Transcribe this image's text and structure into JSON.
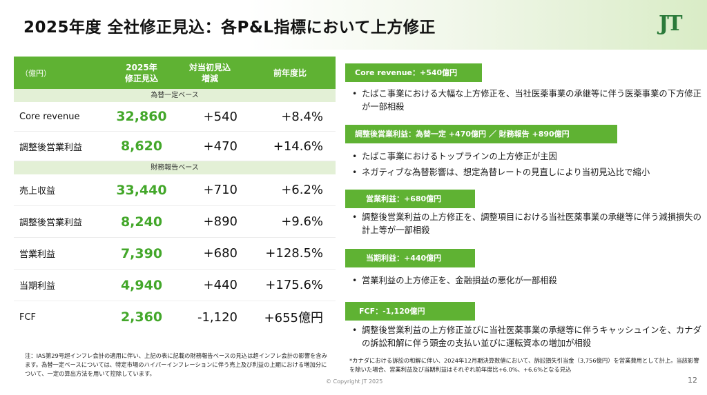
{
  "header": {
    "title": "2025年度 全社修正見込：各P&L指標において上方修正",
    "logo": "JT"
  },
  "table": {
    "headers": {
      "unit": "（億円）",
      "col1_line1": "2025年",
      "col1_line2": "修正見込",
      "col2_line1": "対当初見込",
      "col2_line2": "増減",
      "col3": "前年度比"
    },
    "section_a": "為替一定ベース",
    "rows_a": [
      {
        "label": "Core revenue",
        "value": "32,860",
        "diff": "+540",
        "yoy": "+8.4%"
      },
      {
        "label": "調整後営業利益",
        "value": "8,620",
        "diff": "+470",
        "yoy": "+14.6%"
      }
    ],
    "section_b": "財務報告ベース",
    "rows_b": [
      {
        "label": "売上収益",
        "value": "33,440",
        "diff": "+710",
        "yoy": "+6.2%"
      },
      {
        "label": "調整後営業利益",
        "value": "8,240",
        "diff": "+890",
        "yoy": "+9.6%"
      },
      {
        "label": "営業利益",
        "value": "7,390",
        "diff": "+680",
        "yoy": "+128.5%"
      },
      {
        "label": "当期利益",
        "value": "4,940",
        "diff": "+440",
        "yoy": "+175.6%"
      },
      {
        "label": "FCF",
        "value": "2,360",
        "diff": "-1,120",
        "yoy": "+655億円"
      }
    ]
  },
  "note_left": "注：IAS第29号超インフレ会計の適用に伴い、上記の表に記載の財務報告ベースの見込は超インフレ会計の影響を含みます。為替一定ベースについては、特定市場のハイパーインフレーションに伴う売上及び利益の上期における増加分について、一定の算出方法を用いて控除しています。",
  "items": {
    "b1": "Core revenue：+540億円",
    "b1_text": "たばこ事業における大幅な上方修正を、当社医薬事業の承継等に伴う医薬事業の下方修正が一部相殺",
    "b2": "調整後営業利益：為替一定 +470億円 ／ 財務報告 +890億円",
    "b2_text1": "たばこ事業におけるトップラインの上方修正が主因",
    "b2_text2": "ネガティブな為替影響は、想定為替レートの見直しにより当初見込比で縮小",
    "b3": "営業利益：+680億円",
    "b3_text": "調整後営業利益の上方修正を、調整項目における当社医薬事業の承継等に伴う減損損失の計上等が一部相殺",
    "b4": "当期利益：+440億円",
    "b4_text": "営業利益の上方修正を、金融損益の悪化が一部相殺",
    "b5": "FCF：-1,120億円",
    "b5_text": "調整後営業利益の上方修正並びに当社医薬事業の承継等に伴うキャッシュインを、カナダの訴訟和解に伴う頭金の支払い並びに運転資本の増加が相殺"
  },
  "note_right": "*カナダにおける訴訟の和解に伴い、2024年12月期決算数値において、訴訟損失引当金（3,756億円）を営業費用として計上。当該影響を除いた場合、営業利益及び当期利益はそれぞれ前年度比+6.0%、+6.6%となる見込",
  "footer": {
    "copyright": "© Copyright JT 2025",
    "page": "12"
  }
}
